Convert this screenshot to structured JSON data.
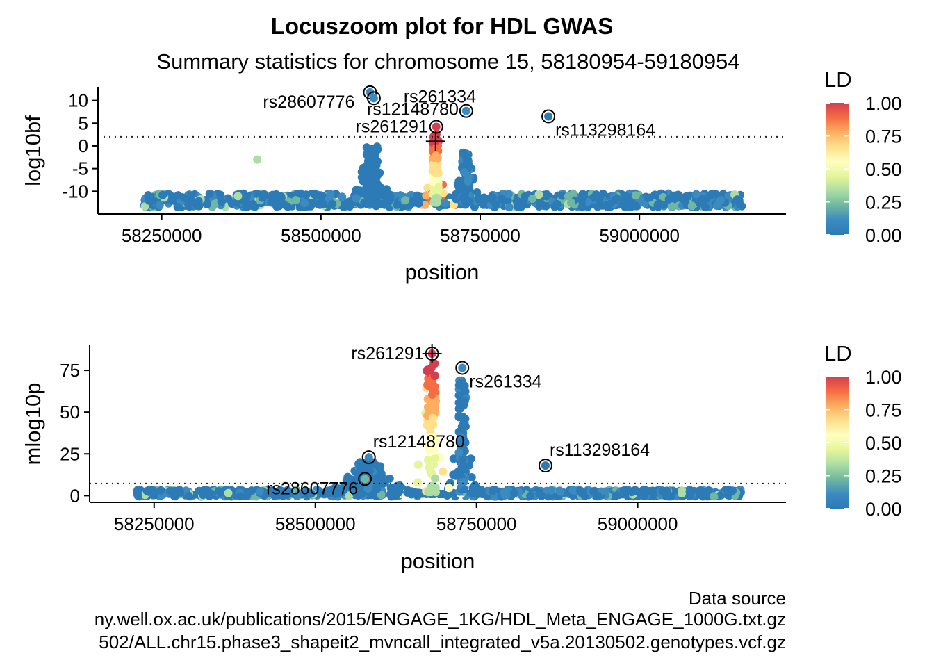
{
  "title": "Locuszoom plot for HDL GWAS",
  "subtitle": "Summary statistics for chromosome 15, 58180954-59180954",
  "colors": {
    "ld_scale": [
      "#2c7bb6",
      "#3b8ac0",
      "#6fb7a0",
      "#abdda4",
      "#e6f598",
      "#ffffbf",
      "#fee08b",
      "#fdae61",
      "#f46d43",
      "#d53e4f"
    ],
    "point_low": "#3a7fb3",
    "point_high": "#d53e4f"
  },
  "chart_data": [
    {
      "type": "scatter",
      "xlabel": "position",
      "ylabel": "log10bf",
      "xticks": [
        58250000,
        58500000,
        58750000,
        59000000
      ],
      "xtick_labels": [
        "58250000",
        "58500000",
        "58750000",
        "59000000"
      ],
      "yticks": [
        10,
        5,
        0,
        -5,
        -10
      ],
      "ytick_labels": [
        "10",
        "5",
        "0",
        "-5",
        "-10"
      ],
      "xlim": [
        58150000,
        59230000
      ],
      "ylim": [
        -15,
        13
      ],
      "threshold": 2,
      "lead_snp": {
        "x": 58680000,
        "y": 1
      },
      "highlighted": [
        {
          "label": "rs28607776",
          "x": 58577000,
          "y": 11.8,
          "ld": 0.1
        },
        {
          "label": "rs12148780",
          "x": 58583000,
          "y": 10.5,
          "ld": 0.1
        },
        {
          "label": "rs261334",
          "x": 58728000,
          "y": 7.7,
          "ld": 0.1
        },
        {
          "label": "rs113298164",
          "x": 58857000,
          "y": 6.5,
          "ld": 0.05
        },
        {
          "label": "rs261291",
          "x": 58681000,
          "y": 4.2,
          "ld": 0.95
        }
      ],
      "label_placement": {
        "rs28607776": "left",
        "rs12148780": "below",
        "rs261334": "above-right",
        "rs113298164": "below-right",
        "rs261291": "left"
      },
      "peaks": [
        {
          "center": 58580000,
          "width": 15000,
          "height": 0,
          "ld": 0.08
        },
        {
          "center": 58680000,
          "width": 8000,
          "height": 3,
          "ld": 0.9
        },
        {
          "center": 58728000,
          "width": 10000,
          "height": -1.5,
          "ld": 0.1
        }
      ],
      "baseline": -13,
      "outliers": [
        {
          "x": 58400000,
          "y": -3,
          "ld": 0.3
        }
      ]
    },
    {
      "type": "scatter",
      "xlabel": "position",
      "ylabel": "mlog10p",
      "xticks": [
        58250000,
        58500000,
        58750000,
        59000000
      ],
      "xtick_labels": [
        "58250000",
        "58500000",
        "58750000",
        "59000000"
      ],
      "yticks": [
        75,
        50,
        25,
        0
      ],
      "ytick_labels": [
        "75",
        "50",
        "25",
        "0"
      ],
      "xlim": [
        58150000,
        59230000
      ],
      "ylim": [
        -4,
        90
      ],
      "threshold": 7.3,
      "lead_snp": {
        "x": 58681000,
        "y": 85
      },
      "highlighted": [
        {
          "label": "rs261291",
          "x": 58681000,
          "y": 85,
          "ld": 1.0
        },
        {
          "label": "rs261334",
          "x": 58728000,
          "y": 76.5,
          "ld": 0.1
        },
        {
          "label": "rs12148780",
          "x": 58583000,
          "y": 23,
          "ld": 0.1
        },
        {
          "label": "rs113298164",
          "x": 58857000,
          "y": 18,
          "ld": 0.05
        },
        {
          "label": "rs28607776",
          "x": 58577000,
          "y": 10,
          "ld": 0.25
        }
      ],
      "label_placement": {
        "rs261291": "left",
        "rs261334": "below-right",
        "rs12148780": "above-right",
        "rs113298164": "above-right",
        "rs28607776": "below-left"
      },
      "peaks": [
        {
          "center": 58680000,
          "width": 12000,
          "height": 82,
          "ld": 0.7
        },
        {
          "center": 58728000,
          "width": 9000,
          "height": 70,
          "ld": 0.1
        },
        {
          "center": 58583000,
          "width": 30000,
          "height": 20,
          "ld": 0.1
        }
      ],
      "baseline": 1,
      "outliers": []
    }
  ],
  "legend": {
    "title": "LD",
    "ticks": [
      1.0,
      0.75,
      0.5,
      0.25,
      0.0
    ],
    "tick_labels": [
      "1.00",
      "0.75",
      "0.50",
      "0.25",
      "0.00"
    ]
  },
  "source": {
    "heading": "Data source",
    "line1": "ny.well.ox.ac.uk/publications/2015/ENGAGE_1KG/HDL_Meta_ENGAGE_1000G.txt.gz",
    "line2": "502/ALL.chr15.phase3_shapeit2_mvncall_integrated_v5a.20130502.genotypes.vcf.gz"
  }
}
